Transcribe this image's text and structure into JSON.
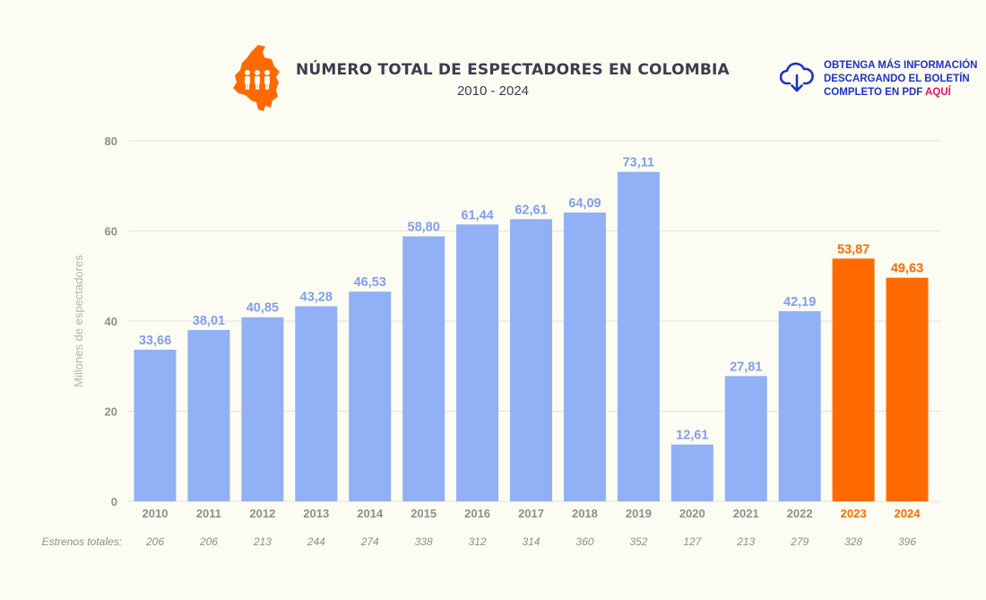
{
  "header": {
    "title": "NÚMERO TOTAL DE ESPECTADORES EN COLOMBIA",
    "subtitle": "2010 - 2024"
  },
  "download": {
    "line1": "OBTENGA MÁS INFORMACIÓN",
    "line2": "DESCARGANDO EL BOLETÍN",
    "line3": "COMPLETO EN PDF",
    "link": "AQUÍ"
  },
  "colors": {
    "bar": "#92b0f5",
    "highlight": "#ff6a00",
    "label_blue": "#7f9ef0",
    "grid": "#e2e2dc",
    "axis_text": "#8e8e8e",
    "logo": "#ff6a00"
  },
  "chart_data": {
    "type": "bar",
    "categories": [
      "2010",
      "2011",
      "2012",
      "2013",
      "2014",
      "2015",
      "2016",
      "2017",
      "2018",
      "2019",
      "2020",
      "2021",
      "2022",
      "2023",
      "2024"
    ],
    "values": [
      33.66,
      38.01,
      40.85,
      43.28,
      46.53,
      58.8,
      61.44,
      62.61,
      64.09,
      73.11,
      12.61,
      27.81,
      42.19,
      53.87,
      49.63
    ],
    "value_labels": [
      "33,66",
      "38,01",
      "40,85",
      "43,28",
      "46,53",
      "58,80",
      "61,44",
      "62,61",
      "64,09",
      "73,11",
      "12,61",
      "27,81",
      "42,19",
      "53,87",
      "49,63"
    ],
    "highlighted": [
      "2023",
      "2024"
    ],
    "ylabel": "Millones de espectadores",
    "xlabel": "",
    "ylim": [
      0,
      80
    ],
    "yticks": [
      0,
      20,
      40,
      60,
      80
    ],
    "grid": true,
    "extra_row": {
      "label": "Estrenos totales:",
      "values": [
        "206",
        "206",
        "213",
        "244",
        "274",
        "338",
        "312",
        "314",
        "360",
        "352",
        "127",
        "213",
        "279",
        "328",
        "396"
      ]
    }
  }
}
